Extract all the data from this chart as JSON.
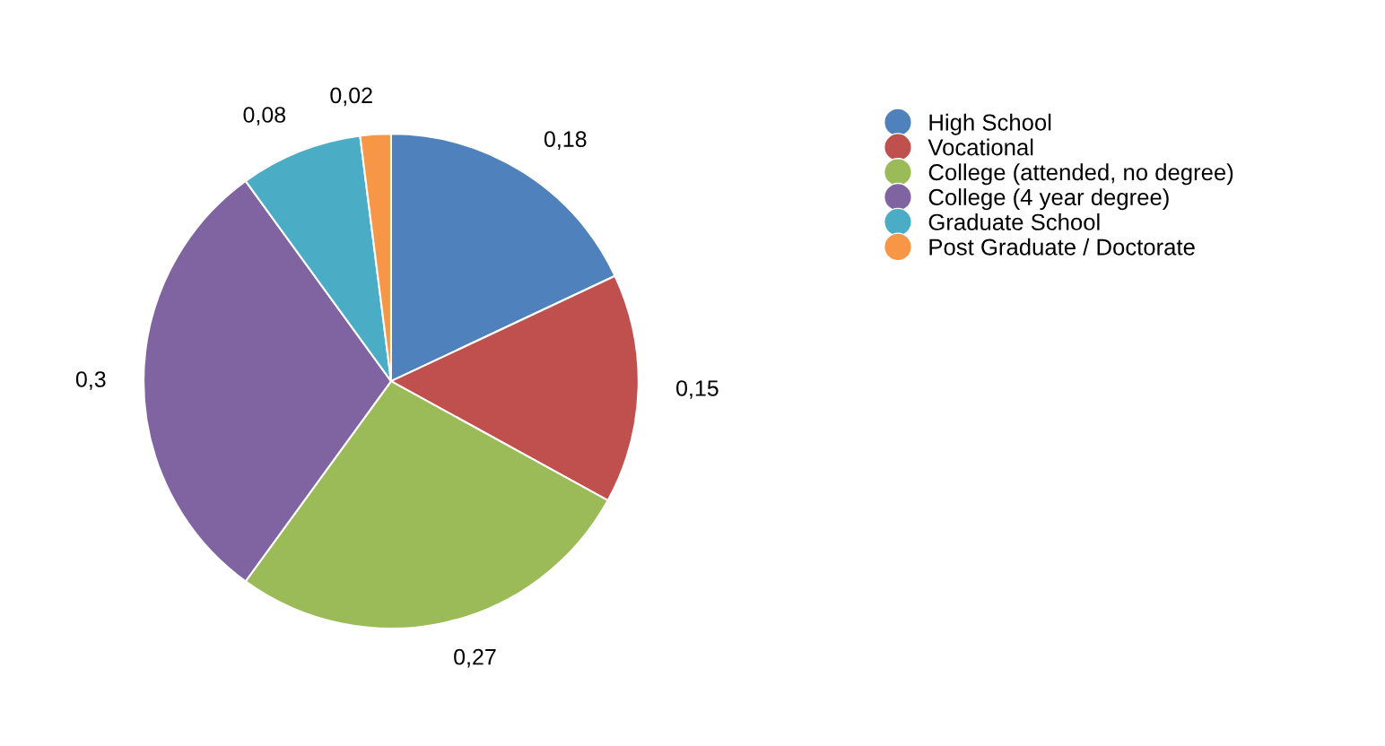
{
  "chart_data": {
    "type": "pie",
    "categories": [
      "High School",
      "Vocational",
      "College (attended, no degree)",
      "College (4 year degree)",
      "Graduate School",
      "Post Graduate / Doctorate"
    ],
    "values": [
      0.18,
      0.15,
      0.27,
      0.3,
      0.08,
      0.02
    ],
    "value_labels": [
      "0,18",
      "0,15",
      "0,27",
      "0,3",
      "0,08",
      "0,02"
    ],
    "colors": [
      "#4f81bd",
      "#c0504d",
      "#9bbb59",
      "#8064a2",
      "#4bacc6",
      "#f79646"
    ],
    "legend": "top right"
  }
}
